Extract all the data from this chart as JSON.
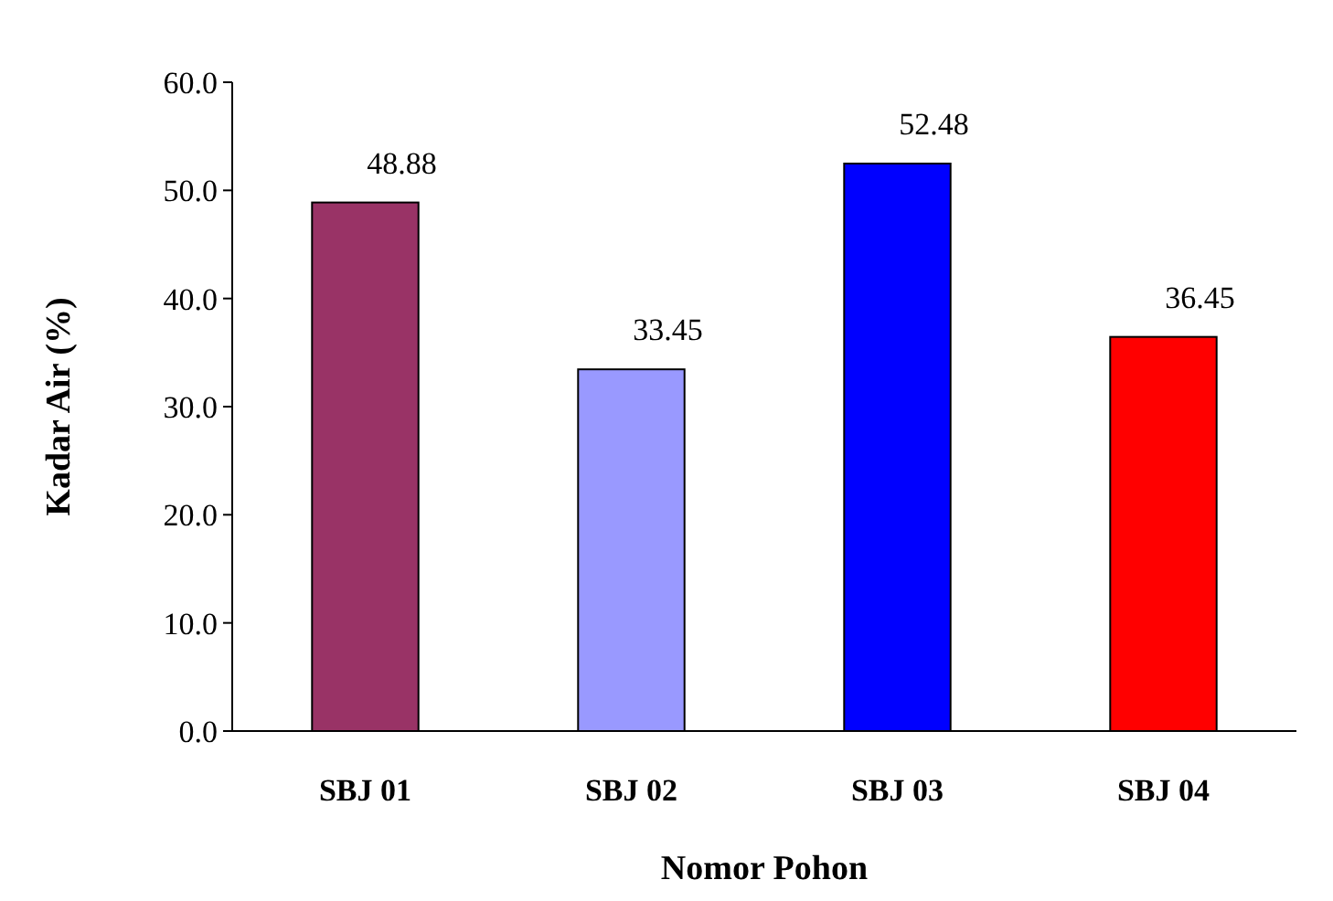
{
  "chart_data": {
    "type": "bar",
    "xlabel": "Nomor Pohon",
    "ylabel": "Kadar Air (%)",
    "categories": [
      "SBJ 01",
      "SBJ 02",
      "SBJ 03",
      "SBJ 04"
    ],
    "values": [
      48.88,
      33.45,
      52.48,
      36.45
    ],
    "colors": [
      "#993366",
      "#9999ff",
      "#0000ff",
      "#ff0000"
    ],
    "ylim": [
      0,
      60
    ],
    "yticks": [
      {
        "value": 0,
        "label": "0.0"
      },
      {
        "value": 10,
        "label": "10.0"
      },
      {
        "value": 20,
        "label": "20.0"
      },
      {
        "value": 30,
        "label": "30.0"
      },
      {
        "value": 40,
        "label": "40.0"
      },
      {
        "value": 50,
        "label": "50.0"
      },
      {
        "value": 60,
        "label": "60.0"
      }
    ],
    "data_labels": true,
    "grid": false
  }
}
